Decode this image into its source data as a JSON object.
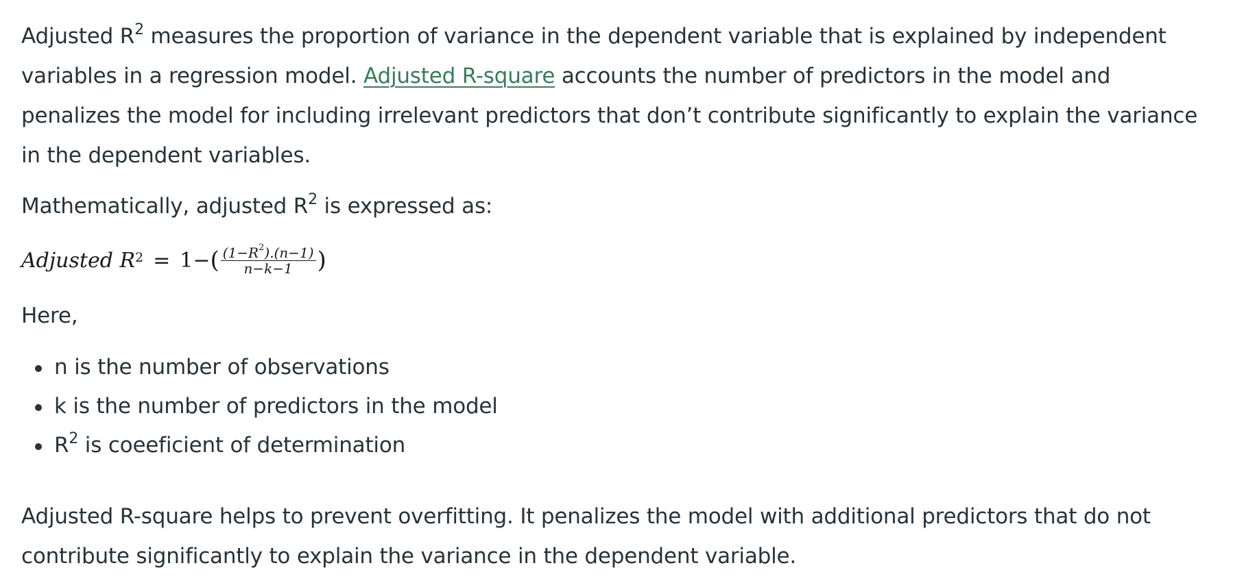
{
  "intro": {
    "part1": "Adjusted R",
    "sup1": "2",
    "part2": " measures the proportion of variance in the dependent variable that is explained by independent variables in a regression model. ",
    "link_text": "Adjusted R-square",
    "part3": " accounts the number of predictors in the model and penalizes the model for including irrelevant predictors that don’t contribute significantly to explain the variance in the dependent variables."
  },
  "math_intro": {
    "part1": "Mathematically, adjusted R",
    "sup": "2",
    "part2": " is expressed as:"
  },
  "formula": {
    "lhs": "Adjusted R",
    "lhs_sup": "2",
    "eq": "=",
    "one_minus": "1−",
    "open_paren": "(",
    "num_a": "(1−R",
    "num_sup": "2",
    "num_b": ").(n−1)",
    "den": "n−k−1",
    "close_paren": ")"
  },
  "here_label": "Here,",
  "definitions": [
    {
      "text": "n is the number of observations"
    },
    {
      "text": "k is the number of predictors in the model"
    },
    {
      "prefix": "R",
      "sup": "2",
      "text": " is coeeficient of determination"
    }
  ],
  "closing": "Adjusted R-square helps to prevent overfitting. It penalizes the model with additional predictors that do not contribute significantly to explain the variance in the dependent variable."
}
